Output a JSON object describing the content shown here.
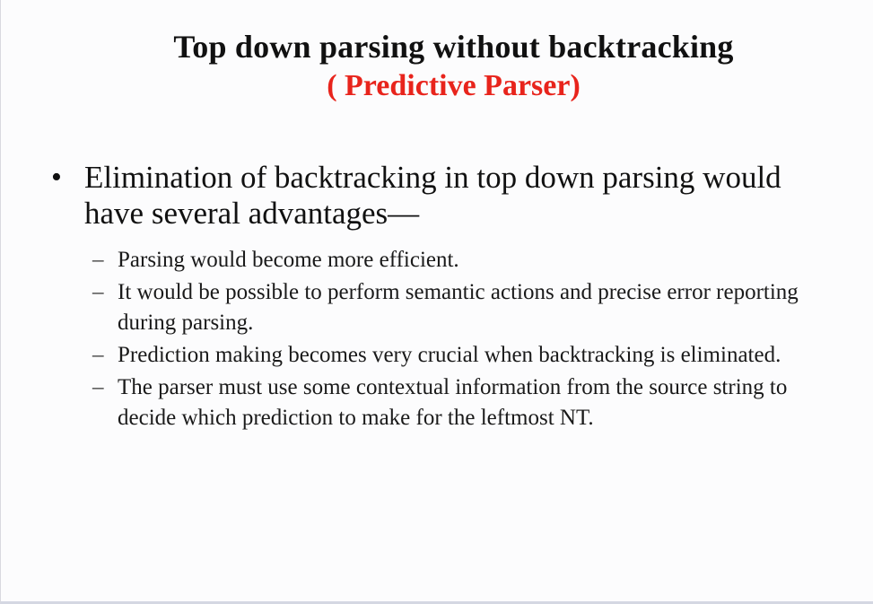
{
  "slide": {
    "title": "Top down parsing without backtracking",
    "subtitle": "( Predictive Parser)",
    "bullet": {
      "marker": "•",
      "text": "Elimination of backtracking in top down parsing would have several advantages—"
    },
    "subitems": [
      {
        "marker": "–",
        "text": "Parsing would become more efficient."
      },
      {
        "marker": "–",
        "text": "It would be possible to perform semantic actions and precise error reporting during parsing."
      },
      {
        "marker": "–",
        "text": "Prediction making becomes very crucial when backtracking is eliminated."
      },
      {
        "marker": "–",
        "text": "The parser must use some contextual information from the source string to decide which prediction to make for the leftmost NT."
      }
    ]
  },
  "colors": {
    "title": "#111111",
    "subtitle": "#e8241c",
    "background": "#fcfcfd"
  }
}
